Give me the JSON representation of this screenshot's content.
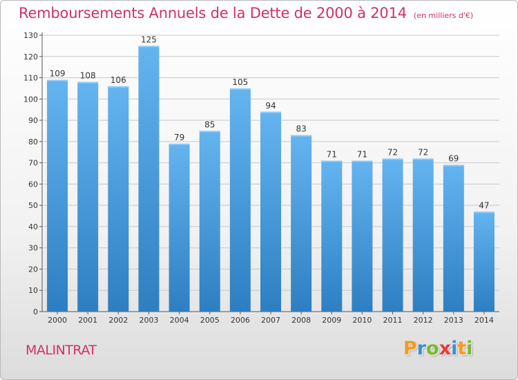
{
  "header": {
    "title": "Remboursements Annuels de la Dette de 2000 à 2014",
    "unit": "(en milliers d'€)"
  },
  "footer": {
    "commune": "MALINTRAT",
    "logo_text": "Proxiti",
    "logo_letters": [
      {
        "ch": "P",
        "color": "#f39a1e"
      },
      {
        "ch": "r",
        "color": "#3a8fd6"
      },
      {
        "ch": "o",
        "color": "#7cb832"
      },
      {
        "ch": "x",
        "color": "#e83b3b"
      },
      {
        "ch": "i",
        "color": "#3a8fd6"
      },
      {
        "ch": "t",
        "color": "#f39a1e"
      },
      {
        "ch": "i",
        "color": "#7cb832"
      }
    ]
  },
  "colors": {
    "title": "#d0306a",
    "bar_top": "#64b4f0",
    "bar_bottom": "#2d7fc2",
    "grid": "#c9c9c9",
    "axis_text": "#333333"
  },
  "chart_data": {
    "type": "bar",
    "title": "Remboursements Annuels de la Dette de 2000 à 2014",
    "ylabel": "en milliers d'€",
    "xlabel": "",
    "categories": [
      "2000",
      "2001",
      "2002",
      "2003",
      "2004",
      "2005",
      "2006",
      "2007",
      "2008",
      "2009",
      "2010",
      "2011",
      "2012",
      "2013",
      "2014"
    ],
    "values": [
      109,
      108,
      106,
      125,
      79,
      85,
      105,
      94,
      83,
      71,
      71,
      72,
      72,
      69,
      47
    ],
    "ylim": [
      0,
      130
    ],
    "yticks": [
      0,
      10,
      20,
      30,
      40,
      50,
      60,
      70,
      80,
      90,
      100,
      110,
      120,
      130
    ],
    "grid": true,
    "data_labels": true
  }
}
